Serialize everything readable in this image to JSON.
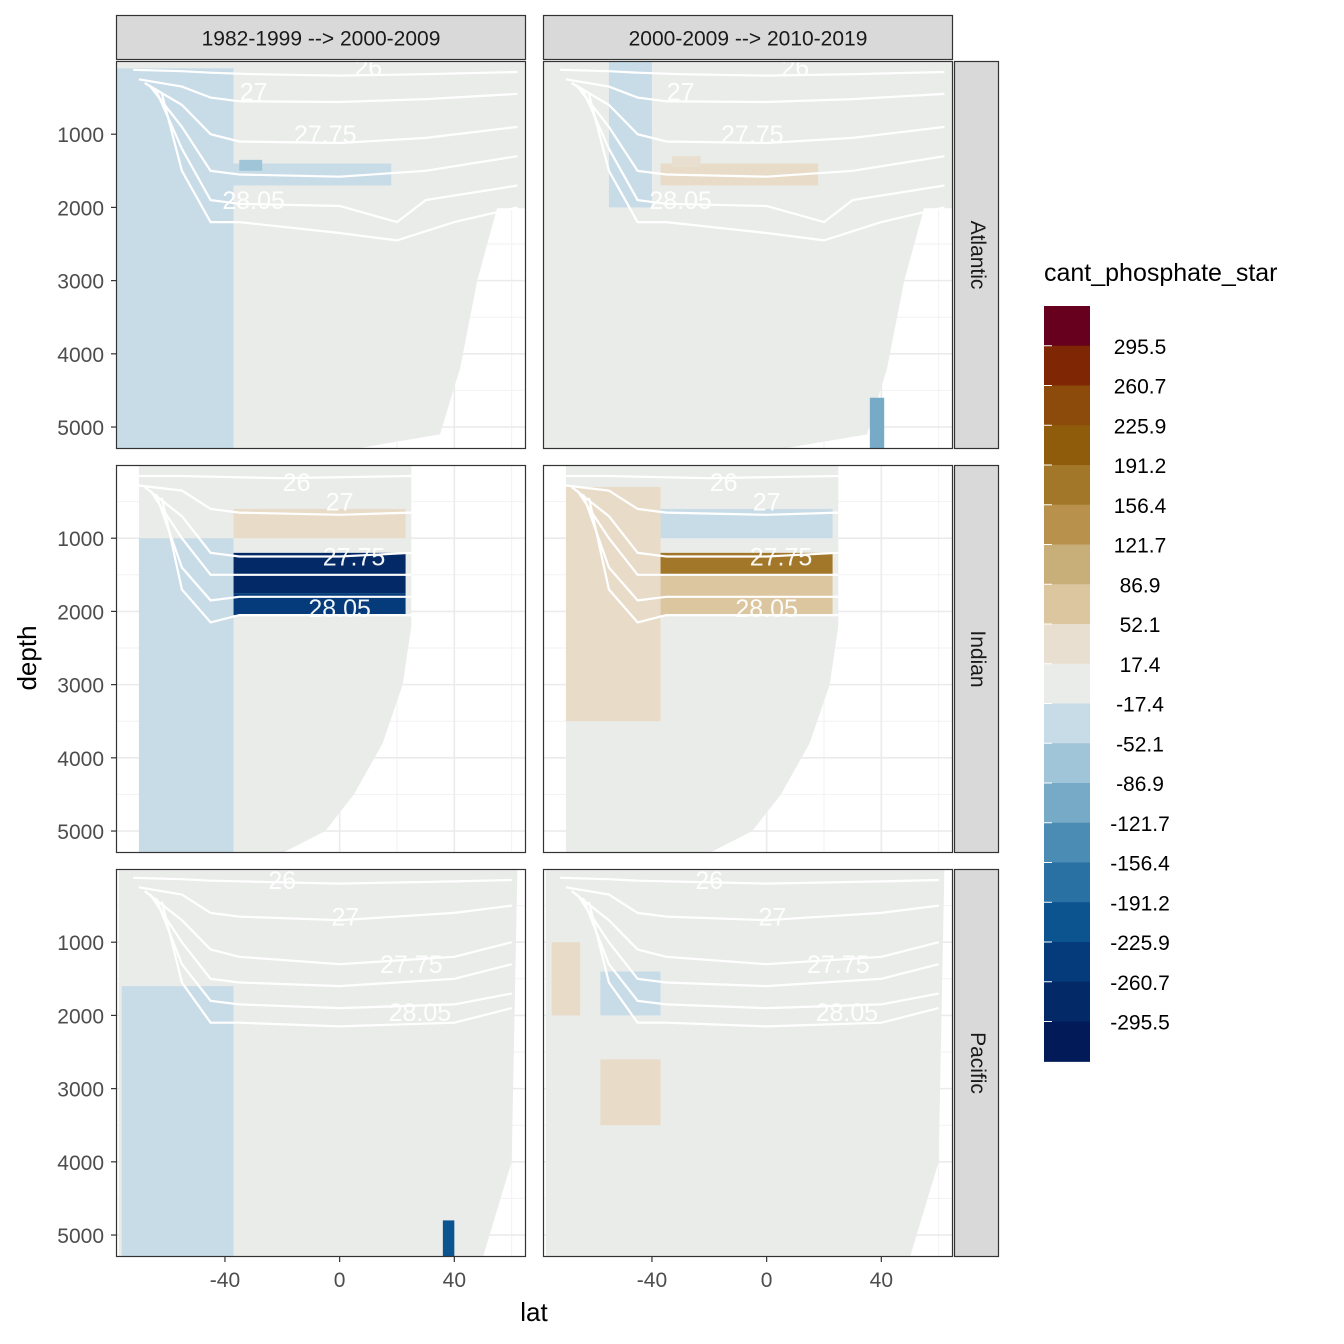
{
  "chart_data": {
    "type": "heatmap",
    "title": "",
    "xlabel": "lat",
    "ylabel": "depth",
    "xlim": [
      -78,
      65
    ],
    "ylim": [
      5300,
      0
    ],
    "x_ticks": [
      -40,
      0,
      40
    ],
    "x_tick_labels": [
      "-40",
      "0",
      "40"
    ],
    "y_ticks": [
      1000,
      2000,
      3000,
      4000,
      5000
    ],
    "y_tick_labels": [
      "1000",
      "2000",
      "3000",
      "4000",
      "5000"
    ],
    "grid": true,
    "columns": [
      "1982-1999 --> 2000-2009",
      "2000-2009 --> 2010-2019"
    ],
    "rows": [
      "Atlantic",
      "Indian",
      "Pacific"
    ],
    "legend": {
      "title": "cant_phosphate_star",
      "position": "right",
      "labels": [
        "295.5",
        "260.7",
        "225.9",
        "191.2",
        "156.4",
        "121.7",
        "86.9",
        "52.1",
        "17.4",
        "-17.4",
        "-52.1",
        "-86.9",
        "-121.7",
        "-156.4",
        "-191.2",
        "-225.9",
        "-260.7",
        "-295.5"
      ],
      "colors": [
        "#67001f",
        "#7f2704",
        "#8c4a0b",
        "#8e5c0b",
        "#a3772a",
        "#b8924d",
        "#c8ae78",
        "#dcc6a0",
        "#e9dfd0",
        "#eaecea",
        "#c8dce8",
        "#a0c4d8",
        "#76aac6",
        "#4a8cb4",
        "#2871a2",
        "#0b5490",
        "#053b7a",
        "#032a66",
        "#021a58"
      ]
    },
    "isopycnal_labels": [
      "26",
      "27",
      "27.75",
      "28.05"
    ],
    "background_color": "#eaecea",
    "panels": [
      {
        "row": "Atlantic",
        "col": "1982-1999 --> 2000-2009",
        "anomalies": [
          {
            "class": "-17.4",
            "lat": [
              -78,
              -37
            ],
            "depth": [
              100,
              5300
            ]
          },
          {
            "class": "-17.4",
            "lat": [
              -37,
              18
            ],
            "depth": [
              1400,
              1700
            ]
          },
          {
            "class": "-52.1",
            "lat": [
              -35,
              -27
            ],
            "depth": [
              1350,
              1500
            ]
          }
        ]
      },
      {
        "row": "Atlantic",
        "col": "2000-2009 --> 2010-2019",
        "anomalies": [
          {
            "class": "17.4",
            "lat": [
              -37,
              18
            ],
            "depth": [
              1400,
              1700
            ]
          },
          {
            "class": "52.1",
            "lat": [
              -33,
              -23
            ],
            "depth": [
              1300,
              1450
            ]
          },
          {
            "class": "-17.4",
            "lat": [
              -55,
              -40
            ],
            "depth": [
              0,
              2000
            ]
          },
          {
            "class": "-86.9",
            "lat": [
              36,
              41
            ],
            "depth": [
              4600,
              5300
            ]
          }
        ]
      },
      {
        "row": "Indian",
        "col": "1982-1999 --> 2000-2009",
        "anomalies": [
          {
            "class": "17.4",
            "lat": [
              -37,
              23
            ],
            "depth": [
              600,
              1000
            ]
          },
          {
            "class": "17.4",
            "lat": [
              -48,
              -37
            ],
            "depth": [
              2000,
              2600
            ]
          },
          {
            "class": "-17.4",
            "lat": [
              -70,
              -37
            ],
            "depth": [
              1000,
              5300
            ]
          },
          {
            "class": "-260.7",
            "lat": [
              -37,
              23
            ],
            "depth": [
              1200,
              1750
            ]
          },
          {
            "class": "-225.9",
            "lat": [
              -37,
              23
            ],
            "depth": [
              1750,
              2050
            ]
          }
        ]
      },
      {
        "row": "Indian",
        "col": "2000-2009 --> 2010-2019",
        "anomalies": [
          {
            "class": "-17.4",
            "lat": [
              -37,
              23
            ],
            "depth": [
              600,
              1000
            ]
          },
          {
            "class": "17.4",
            "lat": [
              -70,
              -37
            ],
            "depth": [
              300,
              3500
            ]
          },
          {
            "class": "191.2",
            "lat": [
              -37,
              23
            ],
            "depth": [
              1200,
              1500
            ]
          },
          {
            "class": "86.9",
            "lat": [
              -37,
              23
            ],
            "depth": [
              1500,
              2050
            ]
          }
        ]
      },
      {
        "row": "Pacific",
        "col": "1982-1999 --> 2000-2009",
        "anomalies": [
          {
            "class": "17.4",
            "lat": [
              -48,
              -37
            ],
            "depth": [
              2200,
              2500
            ]
          },
          {
            "class": "-17.4",
            "lat": [
              -76,
              -37
            ],
            "depth": [
              1600,
              5300
            ]
          },
          {
            "class": "-191.2",
            "lat": [
              36,
              40
            ],
            "depth": [
              4800,
              5300
            ]
          }
        ]
      },
      {
        "row": "Pacific",
        "col": "2000-2009 --> 2010-2019",
        "anomalies": [
          {
            "class": "17.4",
            "lat": [
              -75,
              -65
            ],
            "depth": [
              1000,
              2000
            ]
          },
          {
            "class": "17.4",
            "lat": [
              -58,
              -37
            ],
            "depth": [
              2600,
              3500
            ]
          },
          {
            "class": "-17.4",
            "lat": [
              -58,
              -37
            ],
            "depth": [
              1400,
              2000
            ]
          }
        ]
      }
    ]
  }
}
